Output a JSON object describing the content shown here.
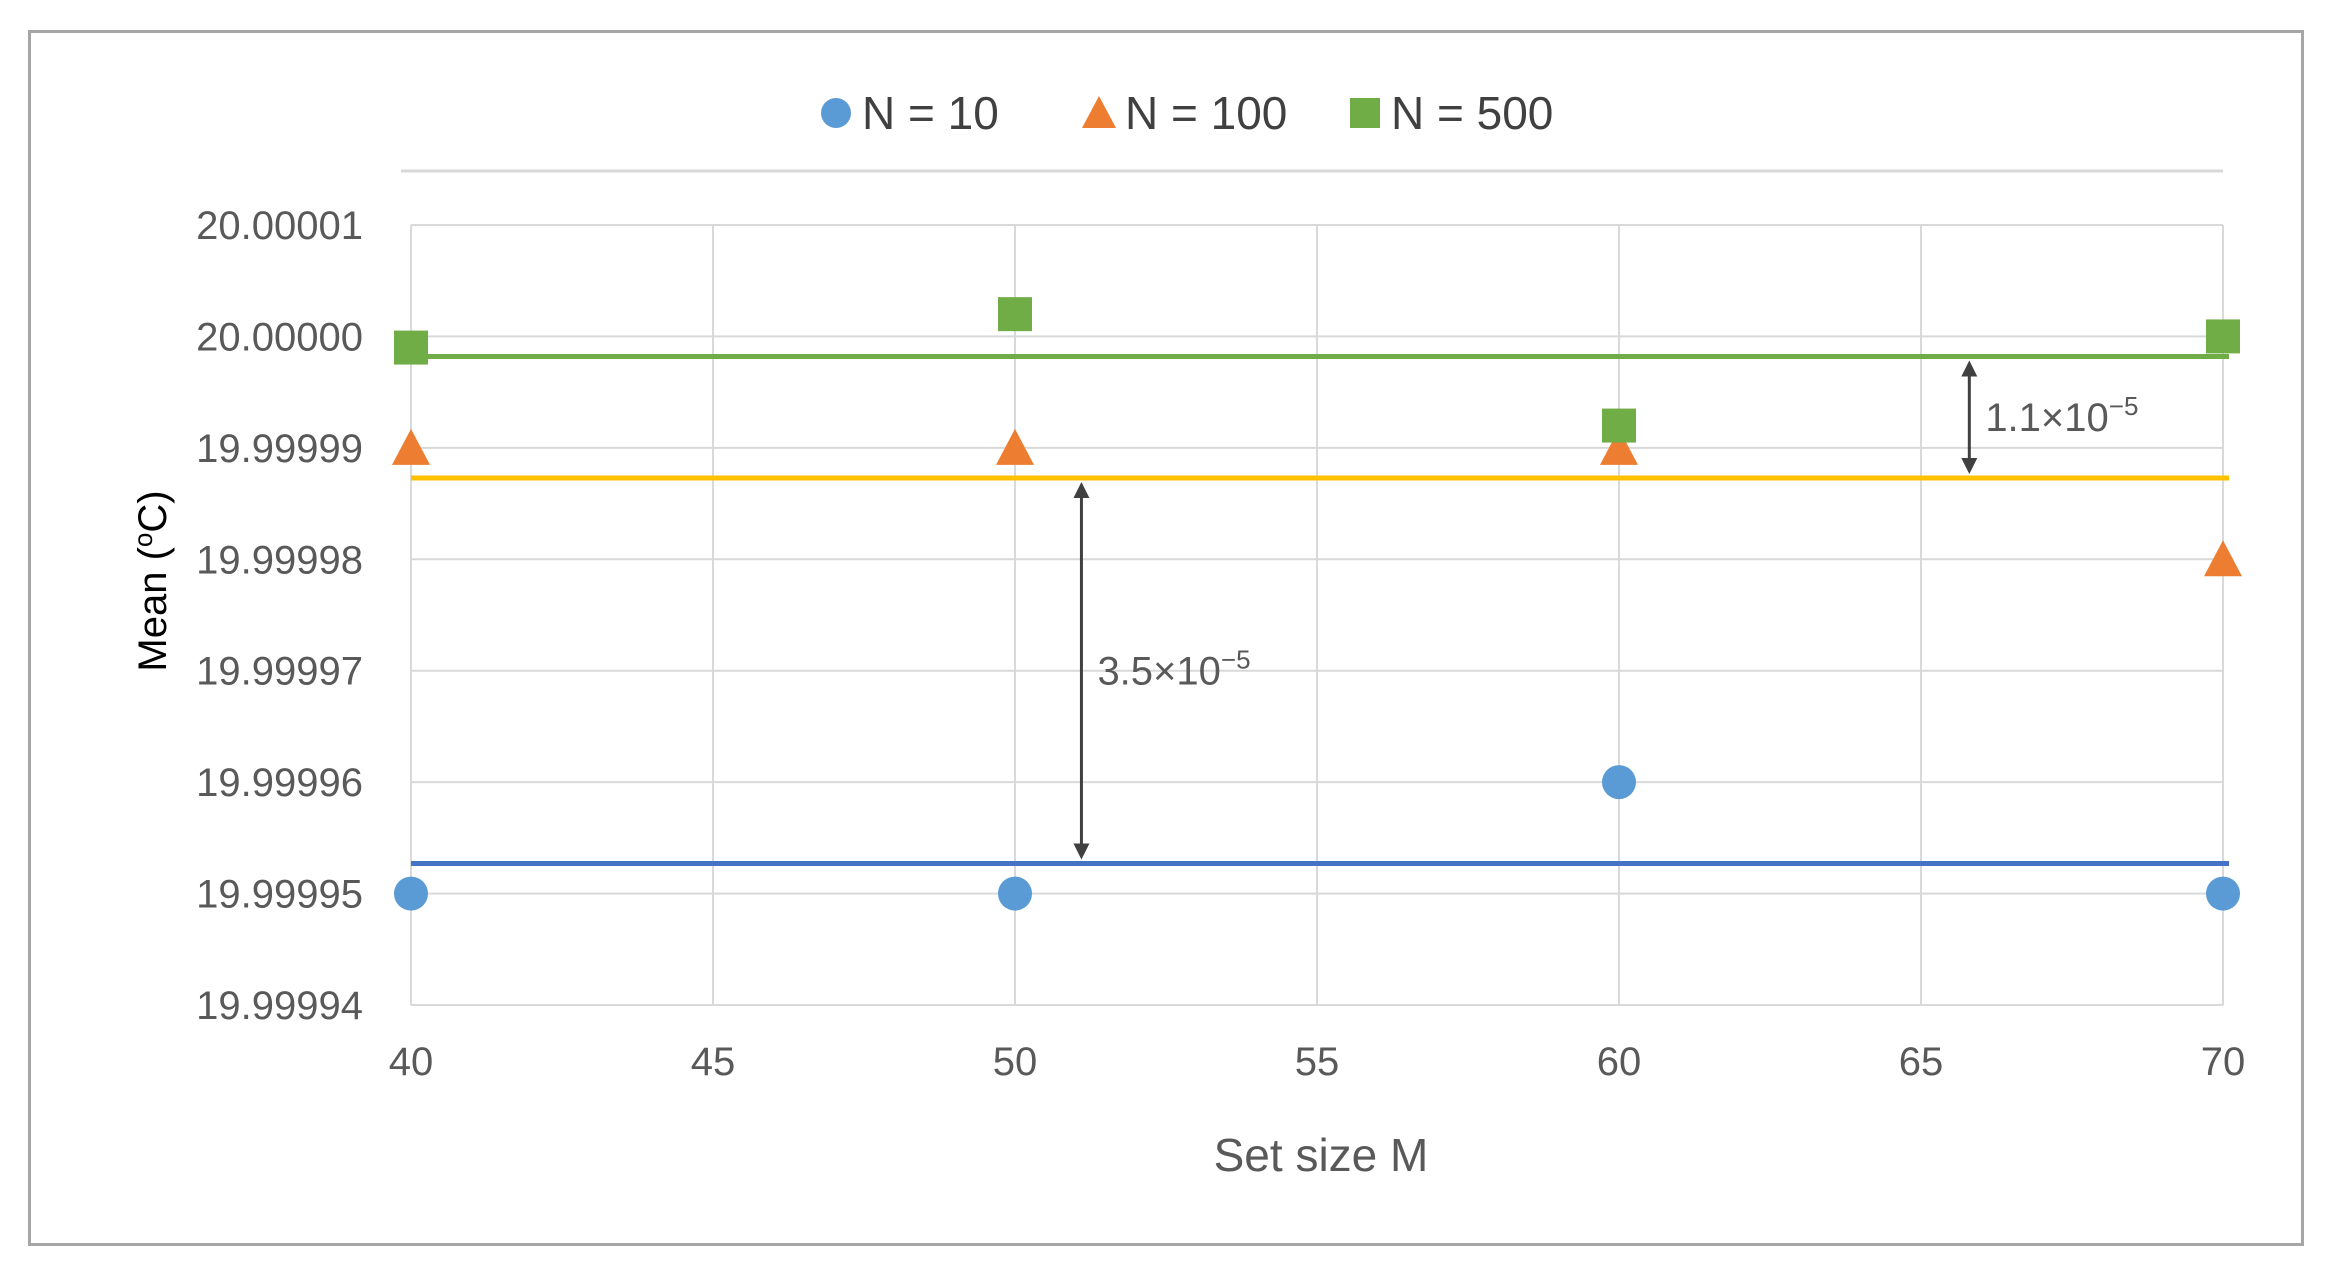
{
  "chart_data": {
    "type": "scatter",
    "xlabel": "Set size M",
    "ylabel": "Mean (",
    "ylabel_sup": "o",
    "ylabel_suffix": "C)",
    "xlim": [
      40,
      70
    ],
    "ylim": [
      19.99994,
      20.00001
    ],
    "x_ticks": [
      40,
      45,
      50,
      55,
      60,
      65,
      70
    ],
    "y_ticks": [
      19.99994,
      19.99995,
      19.99996,
      19.99997,
      19.99998,
      19.99999,
      20.0,
      20.00001
    ],
    "x_tick_labels": [
      "40",
      "45",
      "50",
      "55",
      "60",
      "65",
      "70"
    ],
    "y_tick_labels": [
      "19.99994",
      "19.99995",
      "19.99996",
      "19.99997",
      "19.99998",
      "19.99999",
      "20.00000",
      "20.00001"
    ],
    "grid": true,
    "legend_position": "top",
    "series": [
      {
        "name": "N = 10",
        "marker": "circle",
        "color": "#5b9bd5",
        "x": [
          40,
          50,
          60,
          70
        ],
        "y": [
          19.99995,
          19.99995,
          19.99996,
          19.99995
        ]
      },
      {
        "name": "N = 100",
        "marker": "triangle",
        "color": "#ed7d31",
        "x": [
          40,
          50,
          60,
          70
        ],
        "y": [
          19.99999,
          19.99999,
          19.99999,
          19.99998
        ]
      },
      {
        "name": "N = 500",
        "marker": "square",
        "color": "#70ad47",
        "x": [
          40,
          50,
          60,
          70
        ],
        "y": [
          19.999999,
          20.000002,
          19.999992,
          20.0
        ]
      }
    ],
    "reference_lines": [
      {
        "y": 19.9999527,
        "color": "#4472c4"
      },
      {
        "y": 19.9999873,
        "color": "#ffc000"
      },
      {
        "y": 19.9999982,
        "color": "#70ad47"
      }
    ],
    "annotations": [
      {
        "label_base": "3.5×10",
        "label_exp": "−5",
        "x": 51.1,
        "y_from": 19.9999527,
        "y_to": 19.9999873
      },
      {
        "label_base": "1.1×10",
        "label_exp": "−5",
        "x": 65.8,
        "y_from": 19.9999873,
        "y_to": 19.9999982
      }
    ]
  }
}
